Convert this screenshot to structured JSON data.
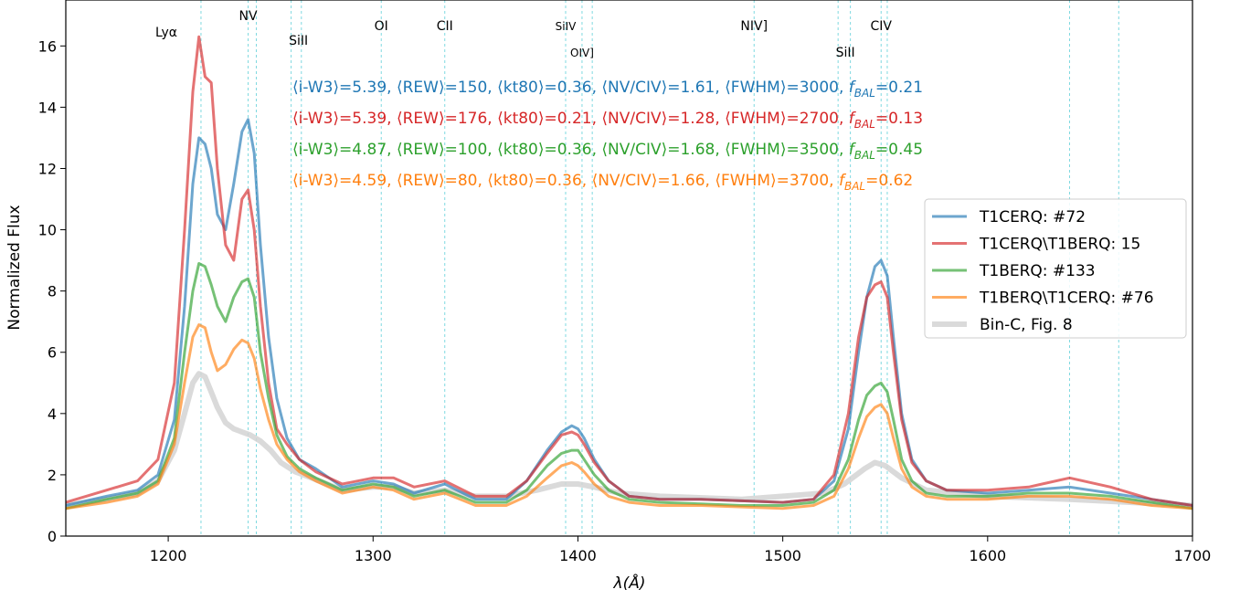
{
  "chart_data": {
    "type": "line",
    "xlabel": "λ(Å)",
    "ylabel": "Normalized Flux",
    "xlim": [
      1150,
      1700
    ],
    "ylim": [
      0,
      17.5
    ],
    "xticks": [
      1200,
      1300,
      1400,
      1500,
      1600,
      1700
    ],
    "yticks": [
      0,
      2,
      4,
      6,
      8,
      10,
      12,
      14,
      16
    ],
    "grid": false,
    "legend_position": "right",
    "line_markers": [
      {
        "label": "Lyα",
        "x": 1216
      },
      {
        "label": "NV",
        "x": 1239
      },
      {
        "label": "",
        "x": 1243
      },
      {
        "label": "SiII",
        "x": 1260
      },
      {
        "label": "",
        "x": 1265
      },
      {
        "label": "OI",
        "x": 1304
      },
      {
        "label": "CII",
        "x": 1335
      },
      {
        "label": "SiIV",
        "x": 1394
      },
      {
        "label": "OIV]",
        "x": 1402
      },
      {
        "label": "",
        "x": 1407
      },
      {
        "label": "NIV]",
        "x": 1486
      },
      {
        "label": "SiII",
        "x": 1527
      },
      {
        "label": "",
        "x": 1533
      },
      {
        "label": "CIV",
        "x": 1548
      },
      {
        "label": "",
        "x": 1551
      },
      {
        "label": "",
        "x": 1640
      },
      {
        "label": "",
        "x": 1664
      }
    ],
    "annotations": [
      {
        "prefix": "⟨i-W3⟩=5.39, ⟨REW⟩=150, ⟨kt80⟩=0.36, ⟨NV/CIV⟩=1.61, ⟨FWHM⟩=3000, ",
        "f": "f",
        "sub": "BAL",
        "value": "=0.21",
        "color": "#1f77b4"
      },
      {
        "prefix": "⟨i-W3⟩=5.39, ⟨REW⟩=176, ⟨kt80⟩=0.21, ⟨NV/CIV⟩=1.28, ⟨FWHM⟩=2700, ",
        "f": "f",
        "sub": "BAL",
        "value": "=0.13",
        "color": "#d62728"
      },
      {
        "prefix": "⟨i-W3⟩=4.87, ⟨REW⟩=100, ⟨kt80⟩=0.36, ⟨NV/CIV⟩=1.68, ⟨FWHM⟩=3500, ",
        "f": "f",
        "sub": "BAL",
        "value": "=0.45",
        "color": "#2ca02c"
      },
      {
        "prefix": "⟨i-W3⟩=4.59, ⟨REW⟩=80, ⟨kt80⟩=0.36, ⟨NV/CIV⟩=1.66, ⟨FWHM⟩=3700, ",
        "f": "f",
        "sub": "BAL",
        "value": "=0.62",
        "color": "#ff7f0e"
      }
    ],
    "series": [
      {
        "name": "T1CERQ: #72",
        "color": "#1f77b4",
        "x": [
          1150,
          1170,
          1185,
          1195,
          1203,
          1208,
          1212,
          1215,
          1218,
          1221,
          1224,
          1228,
          1232,
          1236,
          1239,
          1242,
          1245,
          1249,
          1253,
          1258,
          1264,
          1272,
          1285,
          1300,
          1310,
          1320,
          1335,
          1350,
          1365,
          1375,
          1385,
          1392,
          1397,
          1400,
          1403,
          1408,
          1415,
          1425,
          1440,
          1460,
          1480,
          1500,
          1515,
          1525,
          1532,
          1537,
          1541,
          1545,
          1548,
          1551,
          1554,
          1558,
          1563,
          1570,
          1580,
          1600,
          1620,
          1640,
          1660,
          1680,
          1700
        ],
        "y": [
          1.0,
          1.3,
          1.5,
          2.0,
          3.8,
          7.5,
          11.5,
          13.0,
          12.8,
          12.0,
          10.5,
          10.0,
          11.5,
          13.2,
          13.6,
          12.5,
          9.5,
          6.5,
          4.5,
          3.2,
          2.5,
          2.2,
          1.6,
          1.8,
          1.7,
          1.4,
          1.7,
          1.2,
          1.2,
          1.8,
          2.8,
          3.4,
          3.6,
          3.5,
          3.2,
          2.5,
          1.8,
          1.3,
          1.2,
          1.2,
          1.15,
          1.1,
          1.2,
          1.8,
          3.5,
          6.0,
          7.8,
          8.8,
          9.0,
          8.5,
          6.5,
          4.0,
          2.5,
          1.8,
          1.5,
          1.4,
          1.5,
          1.6,
          1.4,
          1.2,
          1.0
        ]
      },
      {
        "name": "T1CERQ\\T1BERQ: 15",
        "color": "#d62728",
        "x": [
          1150,
          1170,
          1185,
          1195,
          1203,
          1208,
          1212,
          1215,
          1218,
          1221,
          1224,
          1228,
          1232,
          1236,
          1239,
          1242,
          1245,
          1249,
          1253,
          1258,
          1264,
          1272,
          1285,
          1300,
          1310,
          1320,
          1335,
          1350,
          1365,
          1375,
          1385,
          1392,
          1397,
          1400,
          1403,
          1408,
          1415,
          1425,
          1440,
          1460,
          1480,
          1500,
          1515,
          1525,
          1532,
          1537,
          1541,
          1545,
          1548,
          1551,
          1554,
          1558,
          1563,
          1570,
          1580,
          1600,
          1620,
          1640,
          1660,
          1680,
          1700
        ],
        "y": [
          1.1,
          1.5,
          1.8,
          2.5,
          5.0,
          10.0,
          14.5,
          16.3,
          15.0,
          14.8,
          12.0,
          9.5,
          9.0,
          11.0,
          11.3,
          10.0,
          7.5,
          5.0,
          3.5,
          3.0,
          2.5,
          2.1,
          1.7,
          1.9,
          1.9,
          1.6,
          1.8,
          1.3,
          1.3,
          1.8,
          2.7,
          3.3,
          3.4,
          3.3,
          3.0,
          2.4,
          1.8,
          1.3,
          1.2,
          1.2,
          1.15,
          1.1,
          1.2,
          2.0,
          4.0,
          6.5,
          7.8,
          8.2,
          8.3,
          7.8,
          6.0,
          3.8,
          2.4,
          1.8,
          1.5,
          1.5,
          1.6,
          1.9,
          1.6,
          1.2,
          1.0
        ]
      },
      {
        "name": "T1BERQ: #133",
        "color": "#2ca02c",
        "x": [
          1150,
          1170,
          1185,
          1195,
          1203,
          1208,
          1212,
          1215,
          1218,
          1221,
          1224,
          1228,
          1232,
          1236,
          1239,
          1242,
          1245,
          1249,
          1253,
          1258,
          1264,
          1272,
          1285,
          1300,
          1310,
          1320,
          1335,
          1350,
          1365,
          1375,
          1385,
          1392,
          1397,
          1400,
          1403,
          1408,
          1415,
          1425,
          1440,
          1460,
          1480,
          1500,
          1515,
          1525,
          1532,
          1537,
          1541,
          1545,
          1548,
          1551,
          1554,
          1558,
          1563,
          1570,
          1580,
          1600,
          1620,
          1640,
          1660,
          1680,
          1700
        ],
        "y": [
          0.9,
          1.2,
          1.4,
          1.8,
          3.2,
          6.0,
          8.0,
          8.9,
          8.8,
          8.2,
          7.5,
          7.0,
          7.8,
          8.3,
          8.4,
          7.8,
          6.0,
          4.5,
          3.3,
          2.6,
          2.2,
          1.9,
          1.5,
          1.7,
          1.6,
          1.3,
          1.5,
          1.1,
          1.1,
          1.5,
          2.3,
          2.7,
          2.8,
          2.8,
          2.5,
          2.0,
          1.5,
          1.2,
          1.1,
          1.05,
          1.0,
          1.0,
          1.1,
          1.5,
          2.5,
          3.8,
          4.6,
          4.9,
          5.0,
          4.7,
          3.8,
          2.5,
          1.8,
          1.4,
          1.3,
          1.3,
          1.4,
          1.4,
          1.3,
          1.1,
          0.9
        ]
      },
      {
        "name": "T1BERQ\\T1CERQ: #76",
        "color": "#ff7f0e",
        "x": [
          1150,
          1170,
          1185,
          1195,
          1203,
          1208,
          1212,
          1215,
          1218,
          1221,
          1224,
          1228,
          1232,
          1236,
          1239,
          1242,
          1245,
          1249,
          1253,
          1258,
          1264,
          1272,
          1285,
          1300,
          1310,
          1320,
          1335,
          1350,
          1365,
          1375,
          1385,
          1392,
          1397,
          1400,
          1403,
          1408,
          1415,
          1425,
          1440,
          1460,
          1480,
          1500,
          1515,
          1525,
          1532,
          1537,
          1541,
          1545,
          1548,
          1551,
          1554,
          1558,
          1563,
          1570,
          1580,
          1600,
          1620,
          1640,
          1660,
          1680,
          1700
        ],
        "y": [
          0.9,
          1.1,
          1.3,
          1.7,
          3.0,
          5.0,
          6.5,
          6.9,
          6.8,
          6.0,
          5.4,
          5.6,
          6.1,
          6.4,
          6.3,
          5.8,
          4.8,
          3.8,
          3.0,
          2.5,
          2.1,
          1.8,
          1.4,
          1.6,
          1.5,
          1.2,
          1.4,
          1.0,
          1.0,
          1.3,
          1.9,
          2.3,
          2.4,
          2.3,
          2.1,
          1.7,
          1.3,
          1.1,
          1.0,
          1.0,
          0.95,
          0.9,
          1.0,
          1.3,
          2.2,
          3.2,
          3.9,
          4.2,
          4.3,
          4.0,
          3.2,
          2.2,
          1.6,
          1.3,
          1.2,
          1.2,
          1.3,
          1.3,
          1.2,
          1.0,
          0.9
        ]
      },
      {
        "name": "Bin-C, Fig. 8",
        "color": "#d3d3d3",
        "x": [
          1150,
          1170,
          1185,
          1195,
          1203,
          1208,
          1212,
          1215,
          1218,
          1221,
          1224,
          1228,
          1232,
          1236,
          1240,
          1245,
          1250,
          1255,
          1262,
          1270,
          1285,
          1300,
          1310,
          1320,
          1335,
          1350,
          1365,
          1380,
          1392,
          1400,
          1408,
          1420,
          1440,
          1480,
          1520,
          1530,
          1540,
          1545,
          1550,
          1558,
          1570,
          1600,
          1640,
          1700
        ],
        "y": [
          1.0,
          1.2,
          1.4,
          1.8,
          2.8,
          4.0,
          5.0,
          5.3,
          5.2,
          4.7,
          4.2,
          3.7,
          3.5,
          3.4,
          3.3,
          3.1,
          2.8,
          2.4,
          2.1,
          1.9,
          1.5,
          1.6,
          1.6,
          1.4,
          1.5,
          1.3,
          1.3,
          1.5,
          1.7,
          1.7,
          1.6,
          1.4,
          1.3,
          1.2,
          1.4,
          1.7,
          2.2,
          2.4,
          2.3,
          1.9,
          1.5,
          1.3,
          1.2,
          1.0
        ]
      }
    ]
  }
}
